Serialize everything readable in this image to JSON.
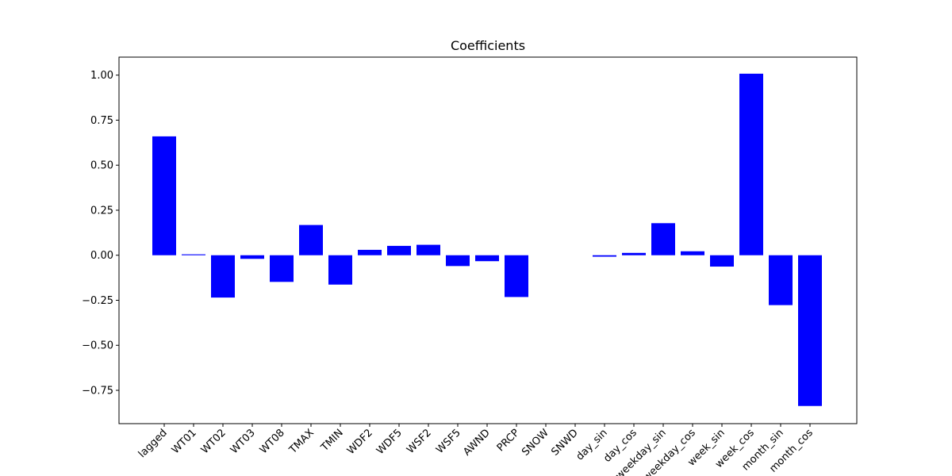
{
  "chart_data": {
    "type": "bar",
    "title": "Coefficients",
    "xlabel": "",
    "ylabel": "",
    "categories": [
      "lagged",
      "WT01",
      "WT02",
      "WT03",
      "WT08",
      "TMAX",
      "TMIN",
      "WDF2",
      "WDF5",
      "WSF2",
      "WSF5",
      "AWND",
      "PRCP",
      "SNOW",
      "SNWD",
      "day_sin",
      "day_cos",
      "weekday_sin",
      "weekday_cos",
      "week_sin",
      "week_cos",
      "month_sin",
      "month_cos"
    ],
    "values": [
      0.66,
      0.005,
      -0.235,
      -0.02,
      -0.148,
      0.168,
      -0.163,
      0.03,
      0.052,
      0.058,
      -0.06,
      -0.033,
      -0.232,
      0.0,
      0.0,
      -0.008,
      0.013,
      0.178,
      0.022,
      -0.063,
      1.008,
      -0.277,
      -0.837
    ],
    "ylim": [
      -0.935,
      1.1
    ],
    "yticks": [
      1.0,
      0.75,
      0.5,
      0.25,
      0.0,
      -0.25,
      -0.5,
      -0.75
    ],
    "ytick_labels": [
      "1.00",
      "0.75",
      "0.50",
      "0.25",
      "0.00",
      "−0.25",
      "−0.50",
      "−0.75"
    ],
    "bar_color": "#0000ff",
    "grid": false,
    "legend": "none"
  }
}
